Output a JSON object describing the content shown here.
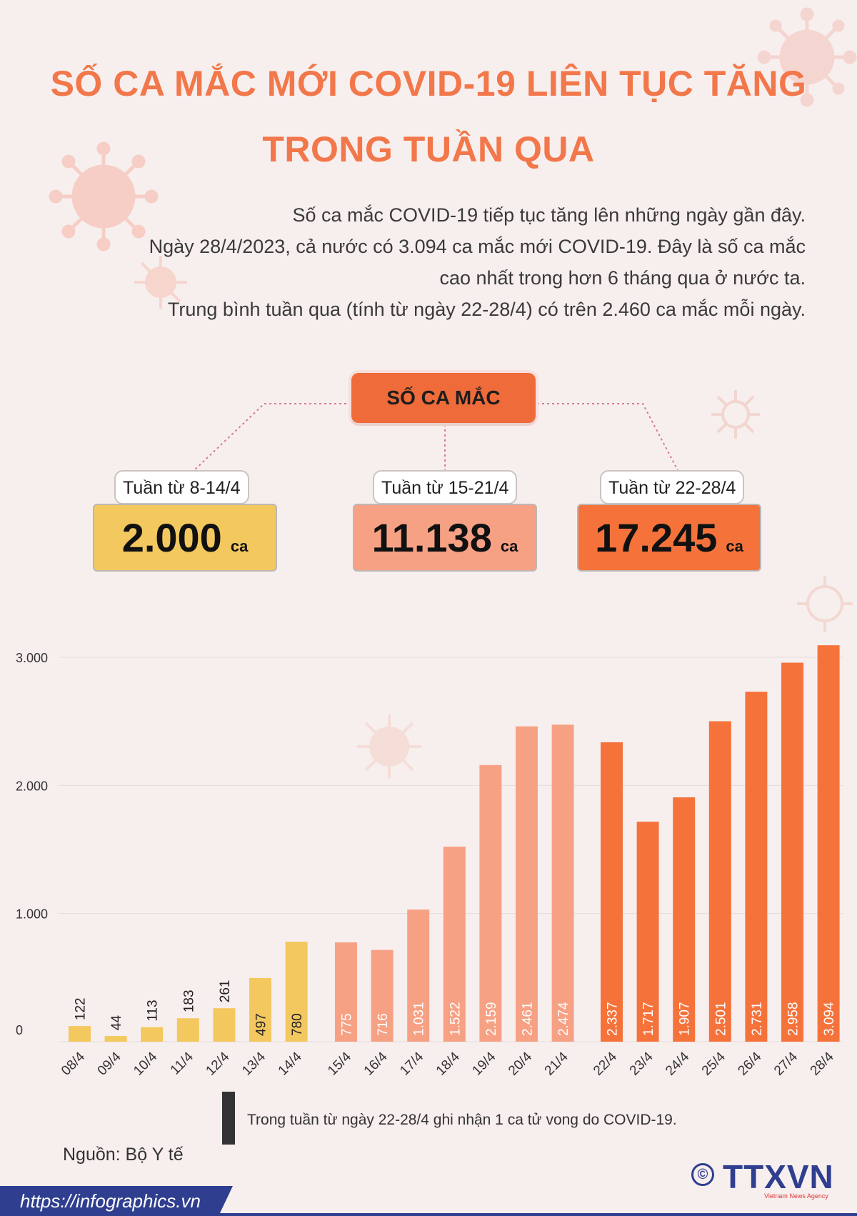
{
  "header": {
    "title_line1": "SỐ CA MẮC MỚI COVID-19 LIÊN TỤC TĂNG",
    "title_line2": "TRONG TUẦN QUA"
  },
  "intro": {
    "line1": "Số ca mắc COVID-19 tiếp tục tăng lên những ngày gần đây.",
    "line2": "Ngày 28/4/2023, cả nước có 3.094 ca mắc mới COVID-19. Đây là số ca mắc",
    "line3": "cao nhất trong hơn 6 tháng qua ở nước ta.",
    "line4": "Trung bình tuần qua (tính từ ngày 22-28/4) có trên 2.460 ca mắc mỗi ngày."
  },
  "summary": {
    "heading": "SỐ CA MẮC",
    "unit": "ca",
    "weeks": [
      {
        "label": "Tuần từ 8-14/4",
        "total": "2.000",
        "color": "#f3c85f"
      },
      {
        "label": "Tuần từ 15-21/4",
        "total": "11.138",
        "color": "#f7a184"
      },
      {
        "label": "Tuần từ 22-28/4",
        "total": "17.245",
        "color": "#f5733b"
      }
    ]
  },
  "chart_data": {
    "type": "bar",
    "ylim": [
      0,
      3000
    ],
    "yticks": [
      0,
      1000,
      2000,
      3000
    ],
    "ytick_labels": [
      "0",
      "1.000",
      "2.000",
      "3.000"
    ],
    "grid": true,
    "categories": [
      "08/4",
      "09/4",
      "10/4",
      "11/4",
      "12/4",
      "13/4",
      "14/4",
      "15/4",
      "16/4",
      "17/4",
      "18/4",
      "19/4",
      "20/4",
      "21/4",
      "22/4",
      "23/4",
      "24/4",
      "25/4",
      "26/4",
      "27/4",
      "28/4"
    ],
    "values": [
      122,
      44,
      113,
      183,
      261,
      497,
      780,
      775,
      716,
      1031,
      1522,
      2159,
      2461,
      2474,
      2337,
      1717,
      1907,
      2501,
      2731,
      2958,
      3094
    ],
    "value_labels": [
      "122",
      "44",
      "113",
      "183",
      "261",
      "497",
      "780",
      "775",
      "716",
      "1.031",
      "1.522",
      "2.159",
      "2.461",
      "2.474",
      "2.337",
      "1.717",
      "1.907",
      "2.501",
      "2.731",
      "2.958",
      "3.094"
    ],
    "group_colors": [
      "#f3c85f",
      "#f7a184",
      "#f5733b"
    ],
    "group_sizes": [
      7,
      7,
      7
    ]
  },
  "note": "Trong tuần từ ngày 22-28/4 ghi nhận 1 ca tử vong do COVID-19.",
  "source": "Nguồn: Bộ Y tế",
  "footer": {
    "url": "https://infographics.vn",
    "logo": "TTXVN",
    "logo_sub": "Vietnam News Agency",
    "copyright": "©"
  }
}
